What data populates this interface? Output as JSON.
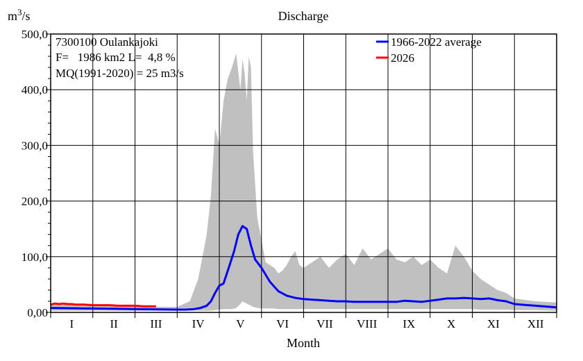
{
  "chart_data": {
    "type": "area",
    "title": "Discharge",
    "ylabel_unit": "m3/s",
    "ylabel_unit_base": "m",
    "ylabel_unit_sup": "3",
    "ylabel_unit_suffix": "/s",
    "xlabel": "Month",
    "ylim": [
      0,
      500
    ],
    "y_ticks": [
      0,
      100,
      200,
      300,
      400,
      500
    ],
    "y_tick_labels": [
      "0,00",
      "100,0",
      "200,0",
      "300,0",
      "400,0",
      "500,0"
    ],
    "months": [
      "I",
      "II",
      "III",
      "IV",
      "V",
      "VI",
      "VII",
      "VIII",
      "IX",
      "X",
      "XI",
      "XII"
    ],
    "grid": true,
    "info": {
      "line1": "7300100 Oulankajoki",
      "line2": "F=   1986 km2 L=  4,8 %",
      "line3": "MQ(1991-2020) = 25 m3/s"
    },
    "legend_position": "top-right",
    "range_band": {
      "color": "#c0c0c0",
      "x_month": [
        0,
        1,
        2,
        3,
        3.3,
        3.5,
        3.7,
        3.8,
        3.9,
        4.0,
        4.1,
        4.2,
        4.3,
        4.4,
        4.5,
        4.55,
        4.6,
        4.65,
        4.7,
        4.75,
        4.8,
        4.9,
        5.0,
        5.1,
        5.2,
        5.3,
        5.4,
        5.5,
        5.6,
        5.7,
        5.8,
        5.9,
        6.0,
        6.2,
        6.4,
        6.6,
        6.8,
        7.0,
        7.2,
        7.4,
        7.6,
        7.8,
        8.0,
        8.2,
        8.4,
        8.6,
        8.8,
        9.0,
        9.2,
        9.4,
        9.6,
        9.8,
        10.0,
        10.2,
        10.4,
        10.6,
        10.8,
        11.0,
        11.5,
        12.0
      ],
      "max": [
        16,
        12,
        10,
        10,
        20,
        60,
        140,
        210,
        330,
        300,
        380,
        420,
        440,
        465,
        400,
        455,
        430,
        380,
        460,
        440,
        290,
        170,
        130,
        90,
        85,
        80,
        70,
        75,
        85,
        100,
        110,
        85,
        80,
        90,
        100,
        80,
        95,
        105,
        85,
        115,
        95,
        105,
        115,
        95,
        90,
        100,
        85,
        95,
        80,
        70,
        120,
        100,
        75,
        60,
        50,
        40,
        35,
        25,
        20,
        18
      ],
      "min": [
        3,
        3,
        3,
        3,
        3,
        3,
        3,
        3,
        4,
        5,
        6,
        6,
        6,
        8,
        15,
        20,
        18,
        16,
        14,
        12,
        10,
        8,
        7,
        7,
        7,
        7,
        6,
        6,
        6,
        6,
        6,
        6,
        6,
        6,
        6,
        6,
        6,
        6,
        6,
        6,
        6,
        6,
        6,
        6,
        6,
        6,
        6,
        6,
        6,
        6,
        6,
        6,
        6,
        5,
        5,
        5,
        5,
        4,
        4,
        3
      ]
    },
    "series": [
      {
        "name": "1966-2022 average",
        "color": "#0000ff",
        "x_month": [
          0,
          0.5,
          1,
          1.5,
          2,
          2.5,
          3,
          3.2,
          3.4,
          3.55,
          3.7,
          3.8,
          3.9,
          4.0,
          4.1,
          4.2,
          4.35,
          4.45,
          4.55,
          4.65,
          4.75,
          4.85,
          5.0,
          5.2,
          5.4,
          5.6,
          5.8,
          6.0,
          6.2,
          6.4,
          6.6,
          6.8,
          7.0,
          7.2,
          7.4,
          7.6,
          7.8,
          8.0,
          8.2,
          8.4,
          8.6,
          8.8,
          9.0,
          9.2,
          9.4,
          9.6,
          9.8,
          10.0,
          10.2,
          10.4,
          10.6,
          10.8,
          11.0,
          11.5,
          12.0
        ],
        "y": [
          8,
          7.5,
          7,
          6.5,
          6,
          5.5,
          5,
          5,
          6,
          8,
          12,
          20,
          35,
          48,
          52,
          75,
          110,
          140,
          155,
          150,
          120,
          95,
          80,
          55,
          38,
          30,
          26,
          24,
          23,
          22,
          21,
          20,
          20,
          19,
          19,
          19,
          19,
          19,
          19,
          21,
          20,
          19,
          21,
          23,
          25,
          25,
          26,
          25,
          24,
          25,
          22,
          20,
          15,
          12,
          9
        ]
      },
      {
        "name": "2026",
        "color": "#ff0000",
        "x_month": [
          0,
          0.1,
          0.2,
          0.3,
          0.4,
          0.5,
          0.6,
          0.8,
          1.0,
          1.2,
          1.4,
          1.6,
          1.8,
          2.0,
          2.2,
          2.4,
          2.5
        ],
        "y": [
          14,
          16,
          15,
          16,
          15,
          15,
          14,
          14,
          13,
          13,
          13,
          12,
          12,
          12,
          11,
          11,
          11
        ]
      }
    ]
  }
}
